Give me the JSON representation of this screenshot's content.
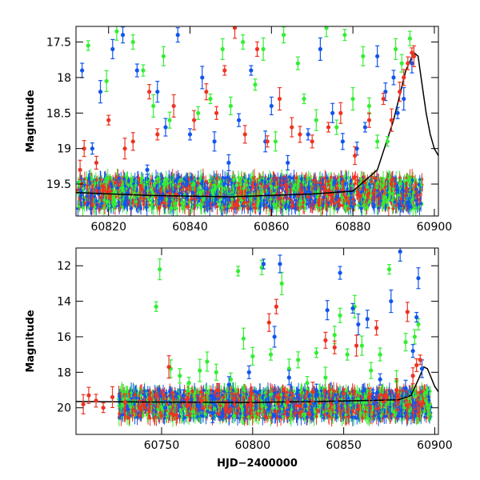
{
  "chart_data": [
    {
      "type": "scatter",
      "title": "",
      "xlabel": "",
      "ylabel": "Magnitude",
      "xlim": [
        60812,
        60901
      ],
      "ylim": [
        19.95,
        17.28
      ],
      "y_inverted": true,
      "x_ticks": [
        60820,
        60840,
        60860,
        60880,
        60900
      ],
      "y_ticks": [
        17.5,
        18,
        18.5,
        19,
        19.5
      ],
      "x_tick_labels": [
        "60820",
        "60840",
        "60860",
        "60880",
        "60900"
      ],
      "y_tick_labels": [
        "17.5",
        "18",
        "18.5",
        "19",
        "19.5"
      ],
      "grid": false,
      "legend": "none",
      "series": [
        {
          "color": "#33ee33",
          "points": [
            [
              60815.0,
              17.55
            ],
            [
              60819.5,
              18.05
            ],
            [
              60822.0,
              17.35
            ],
            [
              60826.0,
              17.5
            ],
            [
              60828.5,
              17.9
            ],
            [
              60831.0,
              18.4
            ],
            [
              60833.5,
              17.7
            ],
            [
              60835.0,
              18.6
            ],
            [
              60842.0,
              18.5
            ],
            [
              60845.0,
              18.3
            ],
            [
              60848.0,
              17.6
            ],
            [
              60850.0,
              18.4
            ],
            [
              60853.0,
              17.5
            ],
            [
              60856.0,
              18.1
            ],
            [
              60858.0,
              17.6
            ],
            [
              60861.0,
              18.9
            ],
            [
              60863.0,
              17.4
            ],
            [
              60866.5,
              17.8
            ],
            [
              60868.0,
              18.3
            ],
            [
              60871.0,
              18.6
            ],
            [
              60873.5,
              17.3
            ],
            [
              60876.0,
              18.7
            ],
            [
              60878.0,
              17.4
            ],
            [
              60880.0,
              18.3
            ],
            [
              60882.5,
              17.7
            ],
            [
              60884.0,
              18.4
            ],
            [
              60886.0,
              18.9
            ],
            [
              60888.5,
              18.9
            ],
            [
              60890.5,
              17.6
            ],
            [
              60892.0,
              17.8
            ],
            [
              60894.0,
              17.45
            ]
          ]
        },
        {
          "color": "#1155ee",
          "points": [
            [
              60813.5,
              17.9
            ],
            [
              60816.0,
              19.0
            ],
            [
              60818.0,
              18.2
            ],
            [
              60821.0,
              17.6
            ],
            [
              60823.5,
              17.4
            ],
            [
              60827.0,
              17.9
            ],
            [
              60829.5,
              19.3
            ],
            [
              60832.0,
              18.2
            ],
            [
              60834.0,
              18.7
            ],
            [
              60837.0,
              17.4
            ],
            [
              60840.0,
              18.8
            ],
            [
              60843.0,
              18.0
            ],
            [
              60846.0,
              18.9
            ],
            [
              60849.5,
              19.2
            ],
            [
              60852.0,
              18.6
            ],
            [
              60855.0,
              17.9
            ],
            [
              60858.5,
              18.9
            ],
            [
              60860.0,
              18.4
            ],
            [
              60864.0,
              19.2
            ],
            [
              60869.0,
              18.8
            ],
            [
              60872.0,
              17.6
            ],
            [
              60875.0,
              18.5
            ],
            [
              60877.5,
              18.9
            ],
            [
              60881.0,
              19.0
            ],
            [
              60883.0,
              18.7
            ],
            [
              60886.0,
              17.7
            ],
            [
              60888.0,
              18.2
            ],
            [
              60890.0,
              18.0
            ],
            [
              60891.0,
              18.5
            ],
            [
              60892.5,
              18.3
            ],
            [
              60894.5,
              17.8
            ]
          ]
        },
        {
          "color": "#ee3322",
          "points": [
            [
              60813.0,
              19.3
            ],
            [
              60814.0,
              19.0
            ],
            [
              60817.0,
              19.2
            ],
            [
              60820.0,
              18.6
            ],
            [
              60824.0,
              19.0
            ],
            [
              60826.0,
              18.9
            ],
            [
              60830.0,
              18.2
            ],
            [
              60832.0,
              18.8
            ],
            [
              60836.0,
              18.4
            ],
            [
              60841.0,
              18.6
            ],
            [
              60844.0,
              18.2
            ],
            [
              60846.5,
              18.5
            ],
            [
              60848.5,
              17.9
            ],
            [
              60851.0,
              17.3
            ],
            [
              60853.5,
              18.8
            ],
            [
              60856.5,
              17.6
            ],
            [
              60859.0,
              18.9
            ],
            [
              60862.0,
              18.3
            ],
            [
              60865.0,
              18.7
            ],
            [
              60867.0,
              18.8
            ],
            [
              60870.0,
              18.9
            ],
            [
              60874.0,
              18.7
            ],
            [
              60877.0,
              18.5
            ],
            [
              60880.5,
              19.1
            ],
            [
              60884.0,
              18.6
            ],
            [
              60887.5,
              18.3
            ],
            [
              60889.5,
              18.6
            ],
            [
              60891.5,
              18.2
            ],
            [
              60892.5,
              18.0
            ],
            [
              60893.5,
              17.8
            ],
            [
              60894.5,
              17.65
            ],
            [
              60895.0,
              17.7
            ]
          ]
        }
      ],
      "model_curve": {
        "color": "#000000",
        "points": [
          [
            60812,
            19.62
          ],
          [
            60830,
            19.66
          ],
          [
            60850,
            19.68
          ],
          [
            60870,
            19.64
          ],
          [
            60880,
            19.6
          ],
          [
            60886,
            19.3
          ],
          [
            60890,
            18.6
          ],
          [
            60893,
            17.9
          ],
          [
            60895,
            17.65
          ],
          [
            60896,
            17.7
          ],
          [
            60897,
            18.1
          ],
          [
            60898,
            18.5
          ],
          [
            60899,
            18.8
          ],
          [
            60900,
            19.0
          ],
          [
            60901,
            19.1
          ]
        ]
      }
    },
    {
      "type": "scatter",
      "title": "",
      "xlabel": "HJD−2400000",
      "ylabel": "Magnitude",
      "xlim": [
        60703,
        60902
      ],
      "ylim": [
        21.5,
        11.0
      ],
      "y_inverted": true,
      "x_ticks": [
        60750,
        60800,
        60850,
        60900
      ],
      "y_ticks": [
        12,
        14,
        16,
        18,
        20
      ],
      "x_tick_labels": [
        "60750",
        "60800",
        "60850",
        "60900"
      ],
      "y_tick_labels": [
        "12",
        "14",
        "16",
        "18",
        "20"
      ],
      "grid": false,
      "legend": "none",
      "series": [
        {
          "color": "#33ee33",
          "points": [
            [
              60747,
              14.3
            ],
            [
              60749,
              12.2
            ],
            [
              60755,
              17.8
            ],
            [
              60760,
              18.2
            ],
            [
              60765,
              18.6
            ],
            [
              60771,
              17.9
            ],
            [
              60775,
              17.4
            ],
            [
              60780,
              18.0
            ],
            [
              60788,
              18.4
            ],
            [
              60792,
              12.3
            ],
            [
              60795,
              16.1
            ],
            [
              60800,
              17.1
            ],
            [
              60805,
              12.1
            ],
            [
              60810,
              17.0
            ],
            [
              60816,
              13.0
            ],
            [
              60820,
              17.8
            ],
            [
              60825,
              17.3
            ],
            [
              60830,
              18.6
            ],
            [
              60835,
              16.9
            ],
            [
              60840,
              18.3
            ],
            [
              60845,
              15.9
            ],
            [
              60848,
              14.8
            ],
            [
              60852,
              17.0
            ],
            [
              60856,
              14.3
            ],
            [
              60860,
              16.5
            ],
            [
              60865,
              17.9
            ],
            [
              60870,
              17.0
            ],
            [
              60875,
              12.2
            ],
            [
              60879,
              18.5
            ],
            [
              60884,
              16.3
            ],
            [
              60889,
              16.0
            ],
            [
              60891,
              15.3
            ]
          ]
        },
        {
          "color": "#1155ee",
          "points": [
            [
              60752,
              20.0
            ],
            [
              60762,
              19.3
            ],
            [
              60770,
              19.9
            ],
            [
              60778,
              20.3
            ],
            [
              60787,
              18.7
            ],
            [
              60798,
              18.0
            ],
            [
              60806,
              11.9
            ],
            [
              60812,
              16.0
            ],
            [
              60815,
              11.9
            ],
            [
              60820,
              18.3
            ],
            [
              60829,
              19.9
            ],
            [
              60835,
              19.3
            ],
            [
              60841,
              14.5
            ],
            [
              60846,
              19.7
            ],
            [
              60848,
              12.4
            ],
            [
              60855,
              14.4
            ],
            [
              60858,
              15.3
            ],
            [
              60863,
              15.0
            ],
            [
              60866,
              19.4
            ],
            [
              60870,
              18.4
            ],
            [
              60876,
              14.0
            ],
            [
              60881,
              11.2
            ],
            [
              60884,
              18.9
            ],
            [
              60888,
              16.8
            ],
            [
              60890,
              14.9
            ],
            [
              60891,
              12.7
            ],
            [
              60893,
              17.8
            ]
          ]
        },
        {
          "color": "#ee3322",
          "points": [
            [
              60707,
              19.8
            ],
            [
              60710,
              19.3
            ],
            [
              60714,
              19.6
            ],
            [
              60718,
              20.0
            ],
            [
              60723,
              19.4
            ],
            [
              60730,
              19.7
            ],
            [
              60738,
              20.0
            ],
            [
              60744,
              19.5
            ],
            [
              60754,
              17.7
            ],
            [
              60764,
              19.9
            ],
            [
              60772,
              19.6
            ],
            [
              60781,
              19.0
            ],
            [
              60790,
              19.5
            ],
            [
              60799,
              19.8
            ],
            [
              60809,
              15.2
            ],
            [
              60813,
              14.3
            ],
            [
              60819,
              19.7
            ],
            [
              60826,
              19.9
            ],
            [
              60833,
              19.1
            ],
            [
              60840,
              16.2
            ],
            [
              60845,
              16.6
            ],
            [
              60850,
              19.2
            ],
            [
              60857,
              16.5
            ],
            [
              60864,
              19.4
            ],
            [
              60868,
              15.5
            ],
            [
              60873,
              19.3
            ],
            [
              60879,
              19.0
            ],
            [
              60885,
              14.6
            ],
            [
              60888,
              18.2
            ],
            [
              60890,
              17.6
            ],
            [
              60892,
              17.3
            ]
          ]
        }
      ],
      "model_curve": {
        "color": "#000000",
        "points": [
          [
            60703,
            19.65
          ],
          [
            60750,
            19.68
          ],
          [
            60800,
            19.7
          ],
          [
            60850,
            19.62
          ],
          [
            60880,
            19.55
          ],
          [
            60887,
            19.3
          ],
          [
            60891,
            18.4
          ],
          [
            60894,
            17.7
          ],
          [
            60896,
            17.8
          ],
          [
            60898,
            18.3
          ],
          [
            60900,
            18.8
          ],
          [
            60902,
            19.1
          ]
        ]
      }
    }
  ]
}
